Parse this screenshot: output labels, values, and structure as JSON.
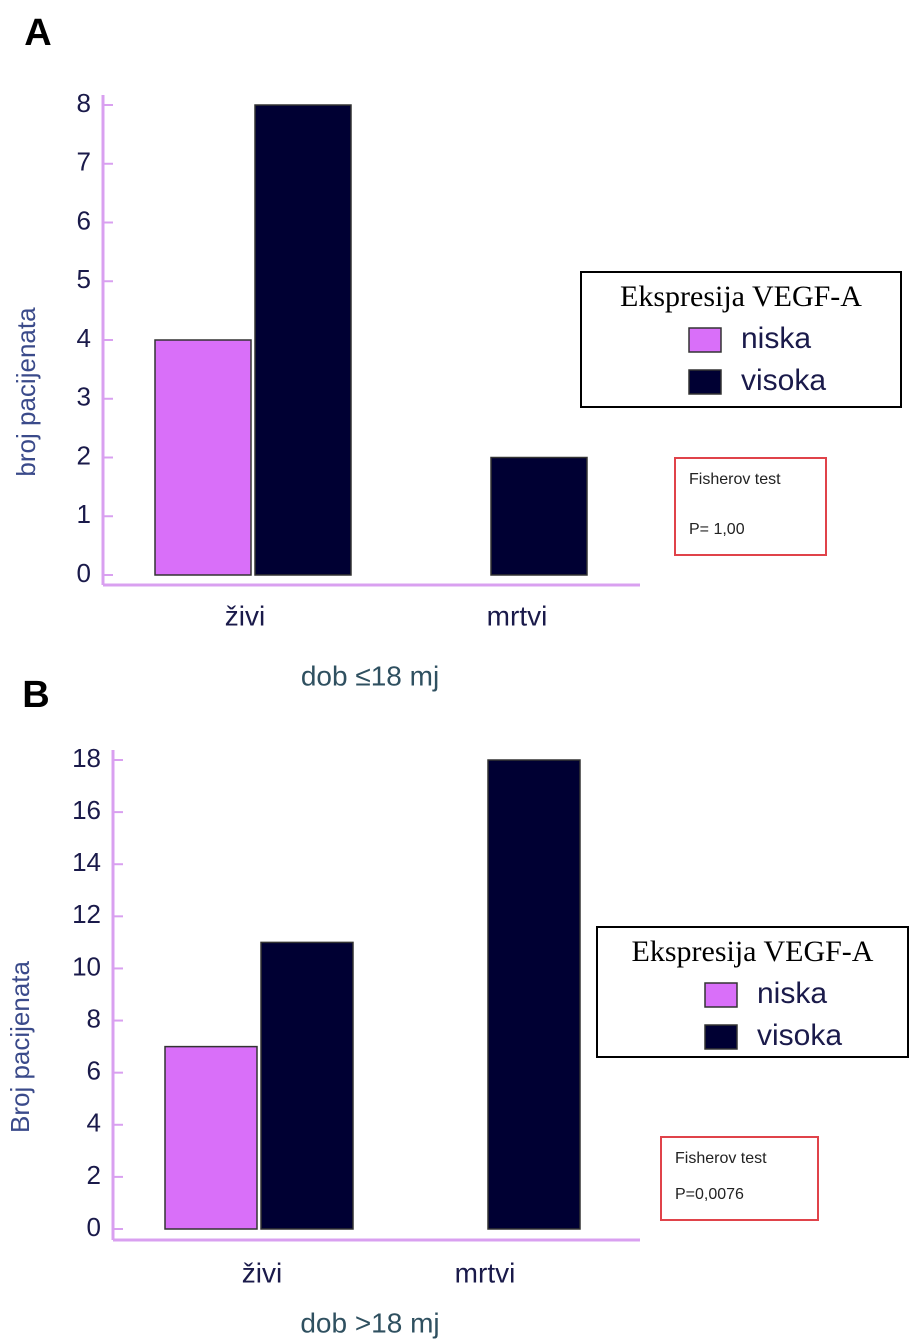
{
  "chart_data": [
    {
      "type": "bar",
      "panel_label": "A",
      "y_label": "broj pacijenata",
      "x_label": "dob ≤18 mj",
      "categories": [
        "živi",
        "mrtvi"
      ],
      "series": [
        {
          "name": "niska",
          "color": "#d96ff9",
          "values": [
            4,
            0
          ]
        },
        {
          "name": "visoka",
          "color": "#000033",
          "values": [
            8,
            2
          ]
        }
      ],
      "ylim": [
        0,
        8
      ],
      "yticks": [
        0,
        1,
        2,
        3,
        4,
        5,
        6,
        7,
        8
      ],
      "legend_title": "Ekspresija VEGF-A",
      "annotation": {
        "title": "Fisherov test",
        "text": "P= 1,00"
      }
    },
    {
      "type": "bar",
      "panel_label": "B",
      "y_label": "Broj pacijenata",
      "x_label": "dob >18 mj",
      "categories": [
        "živi",
        "mrtvi"
      ],
      "series": [
        {
          "name": "niska",
          "color": "#d96ff9",
          "values": [
            7,
            0
          ]
        },
        {
          "name": "visoka",
          "color": "#000033",
          "values": [
            11,
            18
          ]
        }
      ],
      "ylim": [
        0,
        18
      ],
      "yticks": [
        0,
        2,
        4,
        6,
        8,
        10,
        12,
        14,
        16,
        18
      ],
      "legend_title": "Ekspresija VEGF-A",
      "annotation": {
        "title": "Fisherov test",
        "text": "P=0,0076"
      }
    }
  ]
}
